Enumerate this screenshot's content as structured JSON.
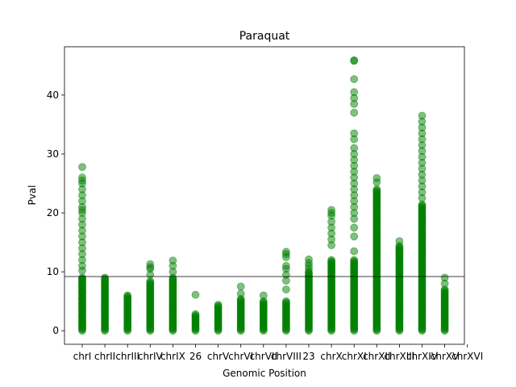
{
  "chart_data": {
    "type": "scatter",
    "title": "Paraquat",
    "xlabel": "Genomic Position",
    "ylabel": "Pval",
    "ylim": [
      -2.3,
      48.2
    ],
    "yticks": [
      0,
      10,
      20,
      30,
      40
    ],
    "threshold": 9.2,
    "point_color": "#008000",
    "point_alpha": 0.5,
    "grid": false,
    "categories": [
      "chrI",
      "chrII",
      "chrIII",
      "chrIV",
      "chrIX",
      "26",
      "chrV",
      "chrVI",
      "chrVII",
      "chrVIII",
      "23",
      "chrX",
      "chrXI",
      "chrXII",
      "chrXIII",
      "chrXIV",
      "chrXV",
      "chrXVI"
    ],
    "series": [
      {
        "x": "chrI",
        "dense_max": 9.0,
        "points": [
          0.8,
          1.5,
          2.5,
          3.5,
          4.5,
          5.5,
          6.5,
          7.5,
          8.8,
          10.2,
          11.0,
          12.0,
          13.0,
          14.0,
          15.0,
          16.0,
          17.0,
          18.0,
          19.0,
          20.0,
          20.5,
          21.0,
          22.0,
          23.0,
          24.0,
          25.0,
          25.5,
          26.0,
          27.8
        ]
      },
      {
        "x": "chrII",
        "dense_max": 9.0,
        "points": []
      },
      {
        "x": "chrIII",
        "dense_max": 6.1,
        "points": []
      },
      {
        "x": "chrIV",
        "dense_max": 8.5,
        "points": [
          9.5,
          10.5,
          10.8,
          11.3
        ]
      },
      {
        "x": "chrIX",
        "dense_max": 9.0,
        "points": [
          10.0,
          11.0,
          11.9
        ]
      },
      {
        "x": "26",
        "dense_max": 2.8,
        "points": [
          6.1
        ]
      },
      {
        "x": "chrV",
        "dense_max": 4.4,
        "points": []
      },
      {
        "x": "chrVI",
        "dense_max": 5.5,
        "points": [
          6.3,
          7.5
        ]
      },
      {
        "x": "chrVII",
        "dense_max": 5.0,
        "points": [
          6.0
        ]
      },
      {
        "x": "chrVIII",
        "dense_max": 5.0,
        "points": [
          7.0,
          8.5,
          9.5,
          10.5,
          11.0,
          12.5,
          13.0,
          13.4
        ]
      },
      {
        "x": "23",
        "dense_max": 10.0,
        "points": [
          10.5,
          11.0,
          11.5,
          12.1
        ]
      },
      {
        "x": "chrX",
        "dense_max": 12.0,
        "points": [
          14.5,
          15.5,
          16.5,
          17.5,
          18.5,
          19.5,
          20.0,
          20.5
        ]
      },
      {
        "x": "chrXI",
        "dense_max": 12.0,
        "points": [
          13.5,
          16.0,
          17.5,
          19.0,
          20.0,
          21.0,
          22.0,
          23.0,
          24.0,
          25.0,
          26.0,
          27.0,
          28.0,
          29.0,
          30.0,
          31.0,
          32.5,
          33.5,
          37.0,
          38.5,
          39.5,
          40.5,
          42.7,
          45.8,
          45.9
        ]
      },
      {
        "x": "chrXII",
        "dense_max": 24.0,
        "points": [
          25.2,
          25.9
        ]
      },
      {
        "x": "chrXIII",
        "dense_max": 14.5,
        "points": [
          15.2
        ]
      },
      {
        "x": "chrXIV",
        "dense_max": 21.5,
        "points": [
          22.5,
          23.5,
          24.5,
          25.5,
          26.5,
          27.5,
          28.5,
          29.5,
          30.5,
          31.5,
          32.5,
          33.5,
          34.5,
          35.5,
          36.5
        ]
      },
      {
        "x": "chrXV",
        "dense_max": 7.0,
        "points": [
          8.0,
          9.0
        ]
      }
    ]
  }
}
